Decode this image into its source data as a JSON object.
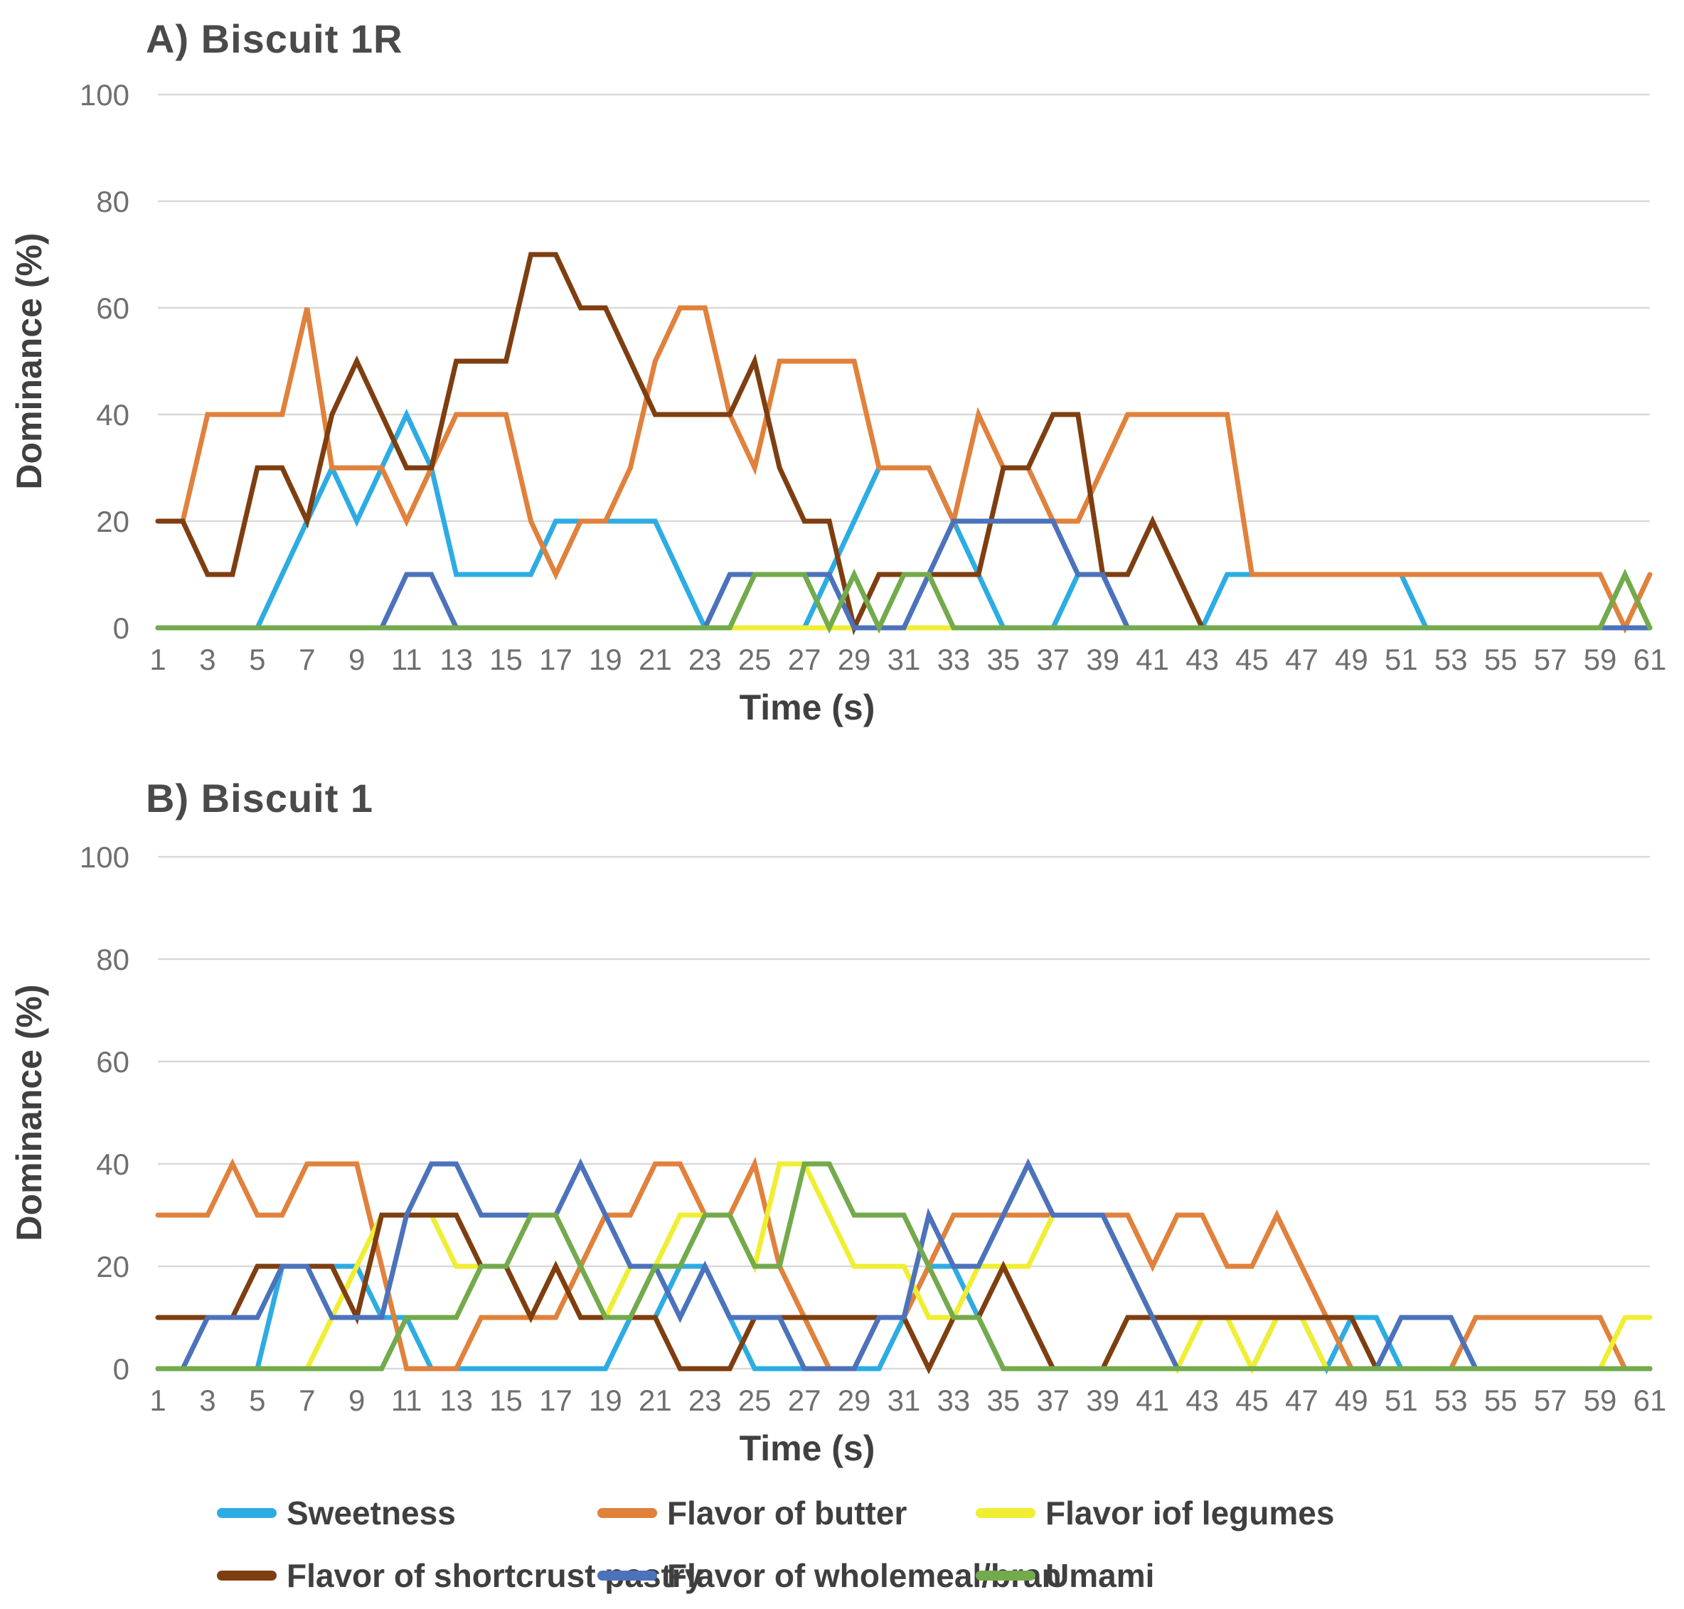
{
  "palette": {
    "background": "#ffffff",
    "gridline": "#d9d9d9",
    "tick_text": "#6f6f6f",
    "axis_title_text": "#404040",
    "chart_title_text": "#4a4a4a",
    "legend_text": "#3f3f3f"
  },
  "legend": {
    "rows": [
      [
        {
          "label": "Sweetness",
          "color": "#2dace3",
          "icon": "line-swatch"
        },
        {
          "label": "Flavor of butter",
          "color": "#e0813c",
          "icon": "line-swatch"
        },
        {
          "label": "Flavor iof legumes",
          "color": "#f0ee33",
          "icon": "line-swatch"
        }
      ],
      [
        {
          "label": "Flavor of shortcrust pastry",
          "color": "#7e3e10",
          "icon": "line-swatch"
        },
        {
          "label": "Flavor of wholemeal/bran",
          "color": "#4c72bb",
          "icon": "line-swatch"
        },
        {
          "label": "Umami",
          "color": "#73aa4c",
          "icon": "line-swatch"
        }
      ]
    ]
  },
  "chart_data": [
    {
      "type": "line",
      "title": "A) Biscuit 1R",
      "xlabel": "Time (s)",
      "ylabel": "Dominance (%)",
      "xlim": [
        1,
        61
      ],
      "ylim": [
        0,
        100
      ],
      "x_step_seconds": 1,
      "grid": true,
      "xticks": [
        1,
        3,
        5,
        7,
        9,
        11,
        13,
        15,
        17,
        19,
        21,
        23,
        25,
        27,
        29,
        31,
        33,
        35,
        37,
        39,
        41,
        43,
        45,
        47,
        49,
        51,
        53,
        55,
        57,
        59,
        61
      ],
      "yticks": [
        0,
        20,
        40,
        60,
        80,
        100
      ],
      "series": [
        {
          "name": "Sweetness",
          "color": "#2dace3",
          "values": [
            0,
            0,
            0,
            0,
            0,
            10,
            20,
            30,
            20,
            30,
            40,
            30,
            10,
            10,
            10,
            10,
            20,
            20,
            20,
            20,
            20,
            10,
            0,
            0,
            0,
            0,
            0,
            10,
            20,
            30,
            30,
            30,
            20,
            10,
            0,
            0,
            0,
            10,
            10,
            0,
            0,
            0,
            0,
            10,
            10,
            10,
            10,
            10,
            10,
            10,
            10,
            0,
            0,
            0,
            0,
            0,
            0,
            0,
            0,
            0,
            0
          ]
        },
        {
          "name": "Flavor of butter",
          "color": "#e0813c",
          "values": [
            20,
            20,
            40,
            40,
            40,
            40,
            60,
            30,
            30,
            30,
            20,
            30,
            40,
            40,
            40,
            20,
            10,
            20,
            20,
            30,
            50,
            60,
            60,
            40,
            30,
            50,
            50,
            50,
            50,
            30,
            30,
            30,
            20,
            40,
            30,
            30,
            20,
            20,
            30,
            40,
            40,
            40,
            40,
            40,
            10,
            10,
            10,
            10,
            10,
            10,
            10,
            10,
            10,
            10,
            10,
            10,
            10,
            10,
            10,
            0,
            10
          ]
        },
        {
          "name": "Flavor iof legumes",
          "color": "#f0ee33",
          "values": [
            0,
            0,
            0,
            0,
            0,
            0,
            0,
            0,
            0,
            0,
            0,
            0,
            0,
            0,
            0,
            0,
            0,
            0,
            0,
            0,
            0,
            0,
            0,
            0,
            0,
            0,
            0,
            0,
            0,
            0,
            0,
            0,
            0,
            0,
            0,
            0,
            0,
            0,
            0,
            0,
            0,
            0,
            0,
            0,
            0,
            0,
            0,
            0,
            0,
            0,
            0,
            0,
            0,
            0,
            0,
            0,
            0,
            0,
            0,
            0,
            0
          ]
        },
        {
          "name": "Flavor of shortcrust pastry",
          "color": "#7e3e10",
          "values": [
            20,
            20,
            10,
            10,
            30,
            30,
            20,
            40,
            50,
            40,
            30,
            30,
            50,
            50,
            50,
            70,
            70,
            60,
            60,
            50,
            40,
            40,
            40,
            40,
            50,
            30,
            20,
            20,
            0,
            10,
            10,
            10,
            10,
            10,
            30,
            30,
            40,
            40,
            10,
            10,
            20,
            10,
            0,
            0,
            0,
            0,
            0,
            0,
            0,
            0,
            0,
            0,
            0,
            0,
            0,
            0,
            0,
            0,
            0,
            0,
            0
          ]
        },
        {
          "name": "Flavor of wholemeal/bran",
          "color": "#4c72bb",
          "values": [
            0,
            0,
            0,
            0,
            0,
            0,
            0,
            0,
            0,
            0,
            10,
            10,
            0,
            0,
            0,
            0,
            0,
            0,
            0,
            0,
            0,
            0,
            0,
            10,
            10,
            10,
            10,
            10,
            0,
            0,
            0,
            10,
            20,
            20,
            20,
            20,
            20,
            10,
            10,
            0,
            0,
            0,
            0,
            0,
            0,
            0,
            0,
            0,
            0,
            0,
            0,
            0,
            0,
            0,
            0,
            0,
            0,
            0,
            0,
            0,
            0
          ]
        },
        {
          "name": "Umami",
          "color": "#73aa4c",
          "values": [
            0,
            0,
            0,
            0,
            0,
            0,
            0,
            0,
            0,
            0,
            0,
            0,
            0,
            0,
            0,
            0,
            0,
            0,
            0,
            0,
            0,
            0,
            0,
            0,
            10,
            10,
            10,
            0,
            10,
            0,
            10,
            10,
            0,
            0,
            0,
            0,
            0,
            0,
            0,
            0,
            0,
            0,
            0,
            0,
            0,
            0,
            0,
            0,
            0,
            0,
            0,
            0,
            0,
            0,
            0,
            0,
            0,
            0,
            0,
            10,
            0
          ]
        }
      ]
    },
    {
      "type": "line",
      "title": "B) Biscuit 1",
      "xlabel": "Time (s)",
      "ylabel": "Dominance (%)",
      "xlim": [
        1,
        61
      ],
      "ylim": [
        0,
        100
      ],
      "x_step_seconds": 1,
      "grid": true,
      "xticks": [
        1,
        3,
        5,
        7,
        9,
        11,
        13,
        15,
        17,
        19,
        21,
        23,
        25,
        27,
        29,
        31,
        33,
        35,
        37,
        39,
        41,
        43,
        45,
        47,
        49,
        51,
        53,
        55,
        57,
        59,
        61
      ],
      "yticks": [
        0,
        20,
        40,
        60,
        80,
        100
      ],
      "series": [
        {
          "name": "Sweetness",
          "color": "#2dace3",
          "values": [
            0,
            0,
            0,
            0,
            0,
            20,
            20,
            20,
            20,
            10,
            10,
            0,
            0,
            0,
            0,
            0,
            0,
            0,
            0,
            10,
            10,
            20,
            20,
            10,
            0,
            0,
            0,
            0,
            0,
            0,
            10,
            20,
            20,
            10,
            0,
            0,
            0,
            0,
            0,
            0,
            0,
            0,
            0,
            0,
            0,
            10,
            10,
            0,
            10,
            10,
            0,
            0,
            0,
            0,
            0,
            0,
            0,
            0,
            0,
            0,
            0
          ]
        },
        {
          "name": "Flavor of butter",
          "color": "#e0813c",
          "values": [
            30,
            30,
            30,
            40,
            30,
            30,
            40,
            40,
            40,
            20,
            0,
            0,
            0,
            10,
            10,
            10,
            10,
            20,
            30,
            30,
            40,
            40,
            30,
            30,
            40,
            20,
            10,
            0,
            0,
            10,
            10,
            20,
            30,
            30,
            30,
            30,
            30,
            30,
            30,
            30,
            20,
            30,
            30,
            20,
            20,
            30,
            20,
            10,
            0,
            0,
            0,
            0,
            0,
            10,
            10,
            10,
            10,
            10,
            10,
            0,
            0
          ]
        },
        {
          "name": "Flavor iof legumes",
          "color": "#f0ee33",
          "values": [
            0,
            0,
            0,
            0,
            0,
            0,
            0,
            10,
            20,
            30,
            30,
            30,
            20,
            20,
            20,
            10,
            20,
            10,
            10,
            20,
            20,
            30,
            30,
            30,
            20,
            40,
            40,
            30,
            20,
            20,
            20,
            10,
            10,
            20,
            20,
            20,
            30,
            30,
            30,
            20,
            10,
            0,
            10,
            10,
            0,
            10,
            10,
            0,
            0,
            0,
            0,
            0,
            0,
            0,
            0,
            0,
            0,
            0,
            0,
            10,
            10
          ]
        },
        {
          "name": "Flavor of shortcrust pastry",
          "color": "#7e3e10",
          "values": [
            10,
            10,
            10,
            10,
            20,
            20,
            20,
            20,
            10,
            30,
            30,
            30,
            30,
            20,
            20,
            10,
            20,
            10,
            10,
            10,
            10,
            0,
            0,
            0,
            10,
            10,
            10,
            10,
            10,
            10,
            10,
            0,
            10,
            10,
            20,
            10,
            0,
            0,
            0,
            10,
            10,
            10,
            10,
            10,
            10,
            10,
            10,
            10,
            10,
            0,
            0,
            0,
            0,
            0,
            0,
            0,
            0,
            0,
            0,
            0,
            0
          ]
        },
        {
          "name": "Flavor of wholemeal/bran",
          "color": "#4c72bb",
          "values": [
            0,
            0,
            10,
            10,
            10,
            20,
            20,
            10,
            10,
            10,
            30,
            40,
            40,
            30,
            30,
            30,
            30,
            40,
            30,
            20,
            20,
            10,
            20,
            10,
            10,
            10,
            0,
            0,
            0,
            10,
            10,
            30,
            20,
            20,
            30,
            40,
            30,
            30,
            30,
            20,
            10,
            0,
            0,
            0,
            0,
            0,
            0,
            0,
            0,
            0,
            10,
            10,
            10,
            0,
            0,
            0,
            0,
            0,
            0,
            0,
            0
          ]
        },
        {
          "name": "Umami",
          "color": "#73aa4c",
          "values": [
            0,
            0,
            0,
            0,
            0,
            0,
            0,
            0,
            0,
            0,
            10,
            10,
            10,
            20,
            20,
            30,
            30,
            20,
            10,
            10,
            20,
            20,
            30,
            30,
            20,
            20,
            40,
            40,
            30,
            30,
            30,
            20,
            10,
            10,
            0,
            0,
            0,
            0,
            0,
            0,
            0,
            0,
            0,
            0,
            0,
            0,
            0,
            0,
            0,
            0,
            0,
            0,
            0,
            0,
            0,
            0,
            0,
            0,
            0,
            0,
            0
          ]
        }
      ]
    }
  ]
}
